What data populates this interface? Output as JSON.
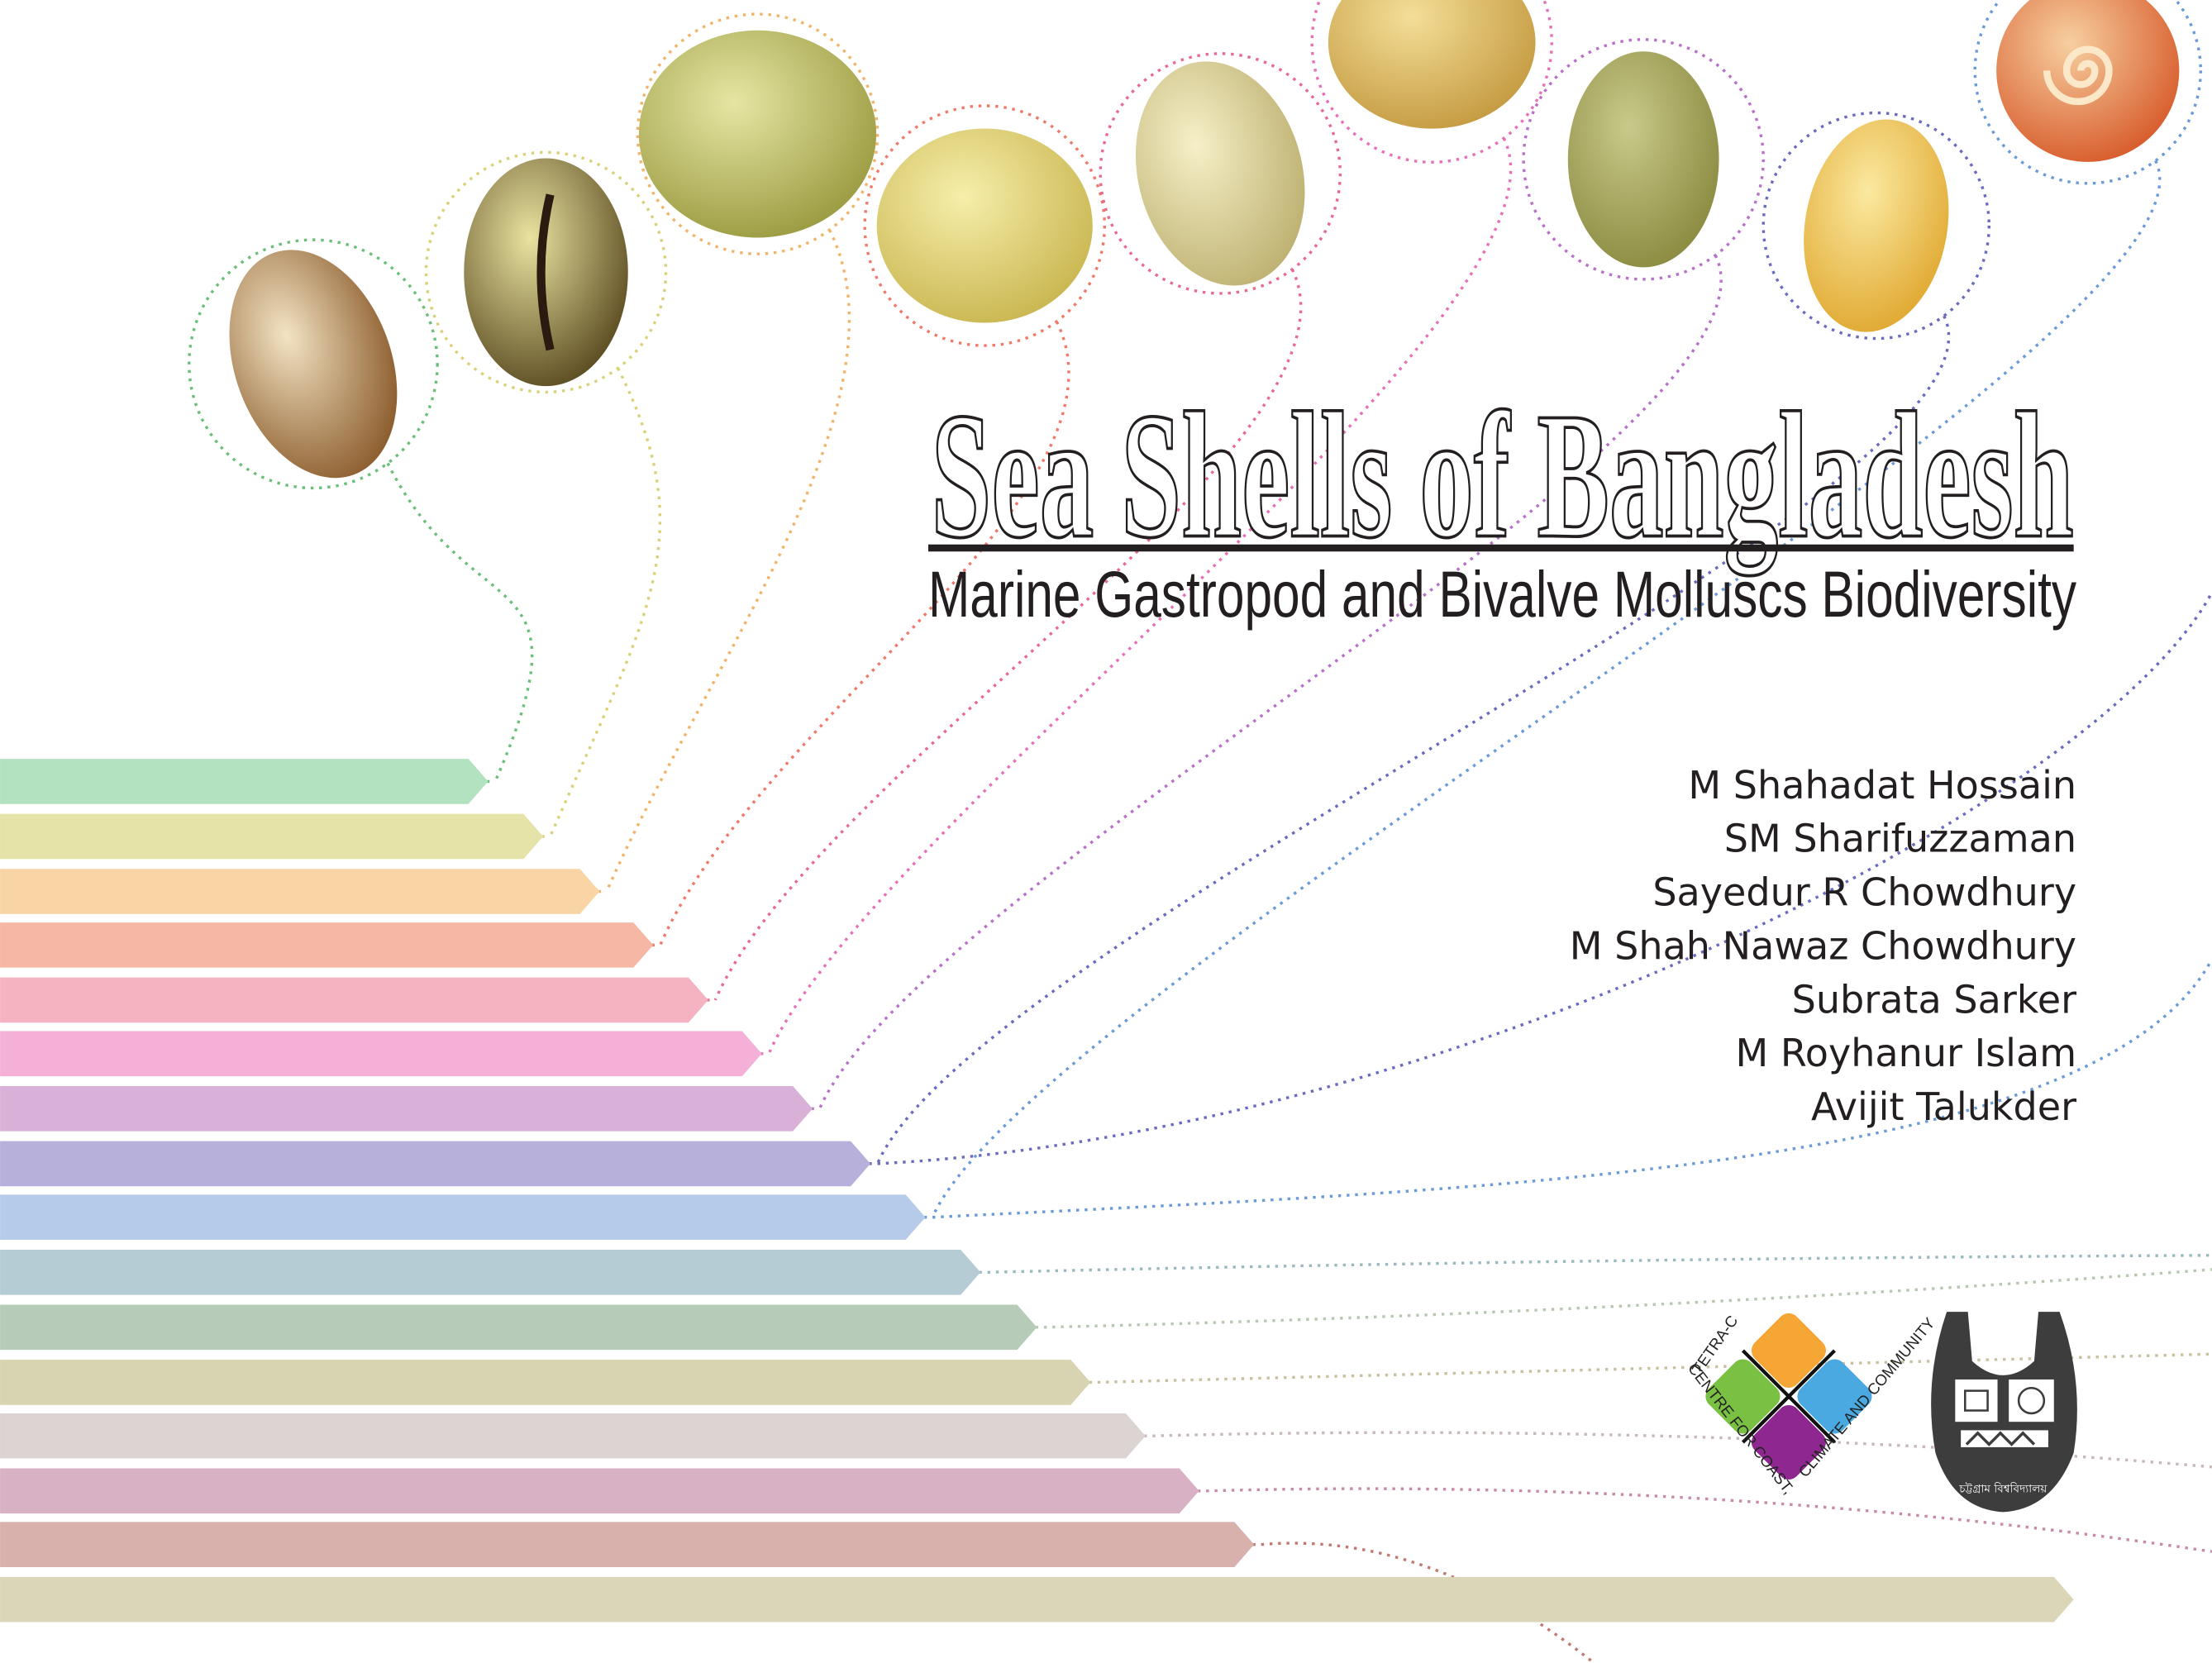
{
  "cover": {
    "title": "Sea Shells of Bangladesh",
    "subtitle": "Marine Gastropod and Bivalve Molluscs Biodiversity",
    "authors": [
      "M Shahadat Hossain",
      "SM Sharifuzzaman",
      "Sayedur R Chowdhury",
      "M Shah Nawaz Chowdhury",
      "Subrata Sarker",
      "M Royhanur Islam",
      "Avijit Talukder"
    ],
    "logos": {
      "tetra_c": {
        "text_top": "TETRA-C",
        "text_left": "CENTRE FOR COAST,",
        "text_right": "CLIMATE AND COMMUNITY",
        "colors": [
          "#f6a634",
          "#7ac143",
          "#4aa9e0",
          "#8e278f"
        ]
      },
      "university": {
        "text": "চট্টগ্রাম বিশ্ববিদ্যালয়",
        "color": "#3d3d3d"
      }
    }
  },
  "shells": [
    {
      "name": "conch-shell",
      "colors": [
        "#f3e4c4",
        "#8a5a2a"
      ],
      "ring": "#6bbf7a"
    },
    {
      "name": "cowrie-shell",
      "colors": [
        "#e9e3a0",
        "#5a4a20"
      ],
      "ring": "#d9d27a"
    },
    {
      "name": "cockle-shell",
      "colors": [
        "#e6e6a4",
        "#9a9a40"
      ],
      "ring": "#f0b46a"
    },
    {
      "name": "clam-shell",
      "colors": [
        "#f6eeaa",
        "#c9b650"
      ],
      "ring": "#ef7a6a"
    },
    {
      "name": "oyster-shell",
      "colors": [
        "#f6f0c8",
        "#bdb070"
      ],
      "ring": "#e86a8f"
    },
    {
      "name": "scallop-shell",
      "colors": [
        "#f4de98",
        "#c49a40"
      ],
      "ring": "#e870b8"
    },
    {
      "name": "limpet-shell",
      "colors": [
        "#c9c98a",
        "#8a8a40"
      ],
      "ring": "#b870c8"
    },
    {
      "name": "whelk-shell",
      "colors": [
        "#fbe9a0",
        "#e0a830"
      ],
      "ring": "#6a6ac0"
    },
    {
      "name": "spiral-shell",
      "colors": [
        "#f7cfa0",
        "#d75a2a"
      ],
      "ring": "#6a9ad8"
    }
  ],
  "bar_colors": [
    "#b2e2bf",
    "#e5e3a7",
    "#f9d4a5",
    "#f6b7a4",
    "#f5b2c0",
    "#f5b0d8",
    "#d8b0d8",
    "#b7b0da",
    "#b6cbe9",
    "#b6ccd4",
    "#b6ccb8",
    "#d8d3b0",
    "#dcd3d3",
    "#d8b2c4",
    "#d8b1ad",
    "#dcd6b8"
  ],
  "line_colors": [
    "#6bbf7a",
    "#d9d27a",
    "#f0b46a",
    "#ef7a6a",
    "#e86a8f",
    "#e870b8",
    "#b870c8",
    "#6a6ac0",
    "#6a9ad8",
    "#9ab8c0",
    "#b8c8b0",
    "#c8c0a0",
    "#c8b8b8",
    "#c88aa8",
    "#c07870",
    "#b08070"
  ]
}
